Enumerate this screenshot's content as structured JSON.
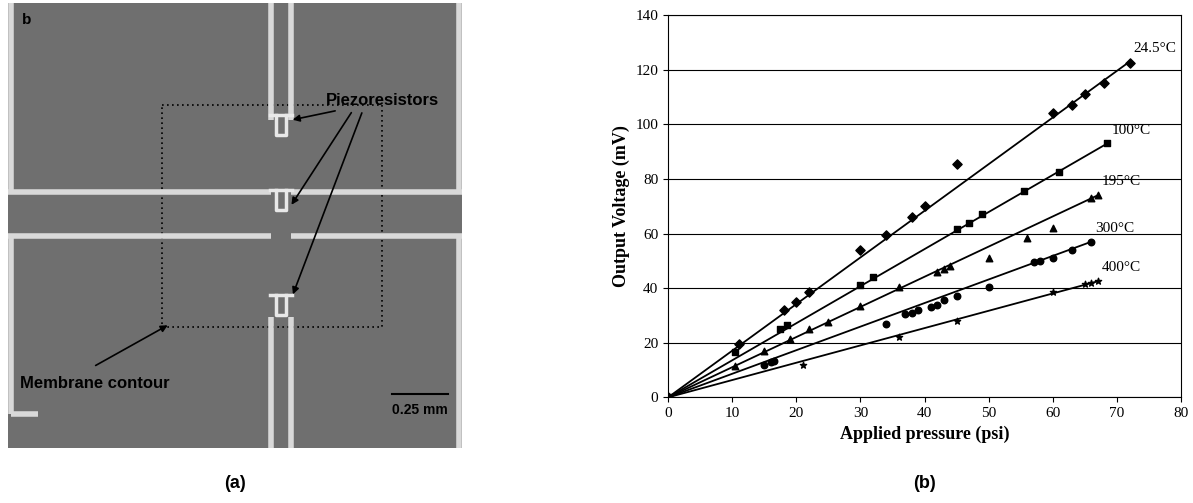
{
  "figure": {
    "panel_labels": [
      "(a)",
      "(b)"
    ]
  },
  "image_panel": {
    "corner_letter": "b",
    "resistor_label": "Piezoresistors",
    "membrane_label": "Membrane contour",
    "scale_bar": "0.25 mm"
  },
  "chart_data": {
    "type": "scatter",
    "x_label": "Applied pressure (psi)",
    "y_label": "Output Voltage (mV)",
    "xlim": [
      0,
      80
    ],
    "xticks": [
      0,
      10,
      20,
      30,
      40,
      50,
      60,
      70,
      80
    ],
    "ylim": [
      0,
      140
    ],
    "yticks": [
      0,
      20,
      40,
      60,
      80,
      100,
      120,
      140
    ],
    "grid": true,
    "color": "#000000",
    "series": [
      {
        "name": "24.5°C",
        "marker": "diamond",
        "x": [
          0,
          11,
          18,
          20,
          22,
          30,
          34,
          38,
          40,
          45,
          60,
          63,
          65,
          68,
          72
        ],
        "values": [
          0,
          19.5,
          32,
          35,
          38.5,
          54,
          59.5,
          66,
          70,
          85.5,
          104,
          107,
          111,
          115,
          122.5
        ],
        "trend": {
          "x": [
            0,
            72
          ],
          "values": [
            0,
            123
          ]
        }
      },
      {
        "name": "100°C",
        "marker": "square",
        "x": [
          0,
          10.5,
          17.5,
          18.5,
          30,
          32,
          45,
          47,
          49,
          55.5,
          61,
          68.5
        ],
        "values": [
          0,
          16.5,
          25,
          26.5,
          41,
          44,
          61.5,
          64,
          67,
          75.5,
          82.5,
          93
        ],
        "trend": {
          "x": [
            0,
            68.5
          ],
          "values": [
            0,
            93
          ]
        }
      },
      {
        "name": "195°C",
        "marker": "triangle",
        "x": [
          0,
          10.5,
          15,
          19,
          22,
          25,
          30,
          36,
          42,
          43,
          44,
          50,
          56,
          60,
          66,
          67
        ],
        "values": [
          0,
          11.5,
          17,
          21.5,
          25,
          27.5,
          33.5,
          40.5,
          46,
          47,
          48,
          51,
          58.5,
          62,
          73,
          74
        ],
        "trend": {
          "x": [
            0,
            67
          ],
          "values": [
            0,
            74
          ]
        }
      },
      {
        "name": "300°C",
        "marker": "circle",
        "x": [
          0,
          15,
          16,
          16.5,
          34,
          37,
          38,
          39,
          41,
          42,
          43,
          45,
          50,
          57,
          58,
          60,
          63,
          66
        ],
        "values": [
          0,
          12,
          13,
          13.5,
          27,
          30.5,
          31,
          32,
          33,
          34,
          35.5,
          37,
          40.5,
          49.5,
          50,
          51,
          54,
          57
        ],
        "trend": {
          "x": [
            0,
            66
          ],
          "values": [
            0,
            57
          ]
        }
      },
      {
        "name": "400°C",
        "marker": "star",
        "x": [
          0,
          21,
          36,
          45,
          60,
          65,
          66,
          67
        ],
        "values": [
          0,
          12,
          22,
          28,
          38.5,
          41.5,
          42,
          42.5
        ],
        "trend": {
          "x": [
            0,
            67
          ],
          "values": [
            0,
            42.5
          ]
        }
      }
    ]
  }
}
